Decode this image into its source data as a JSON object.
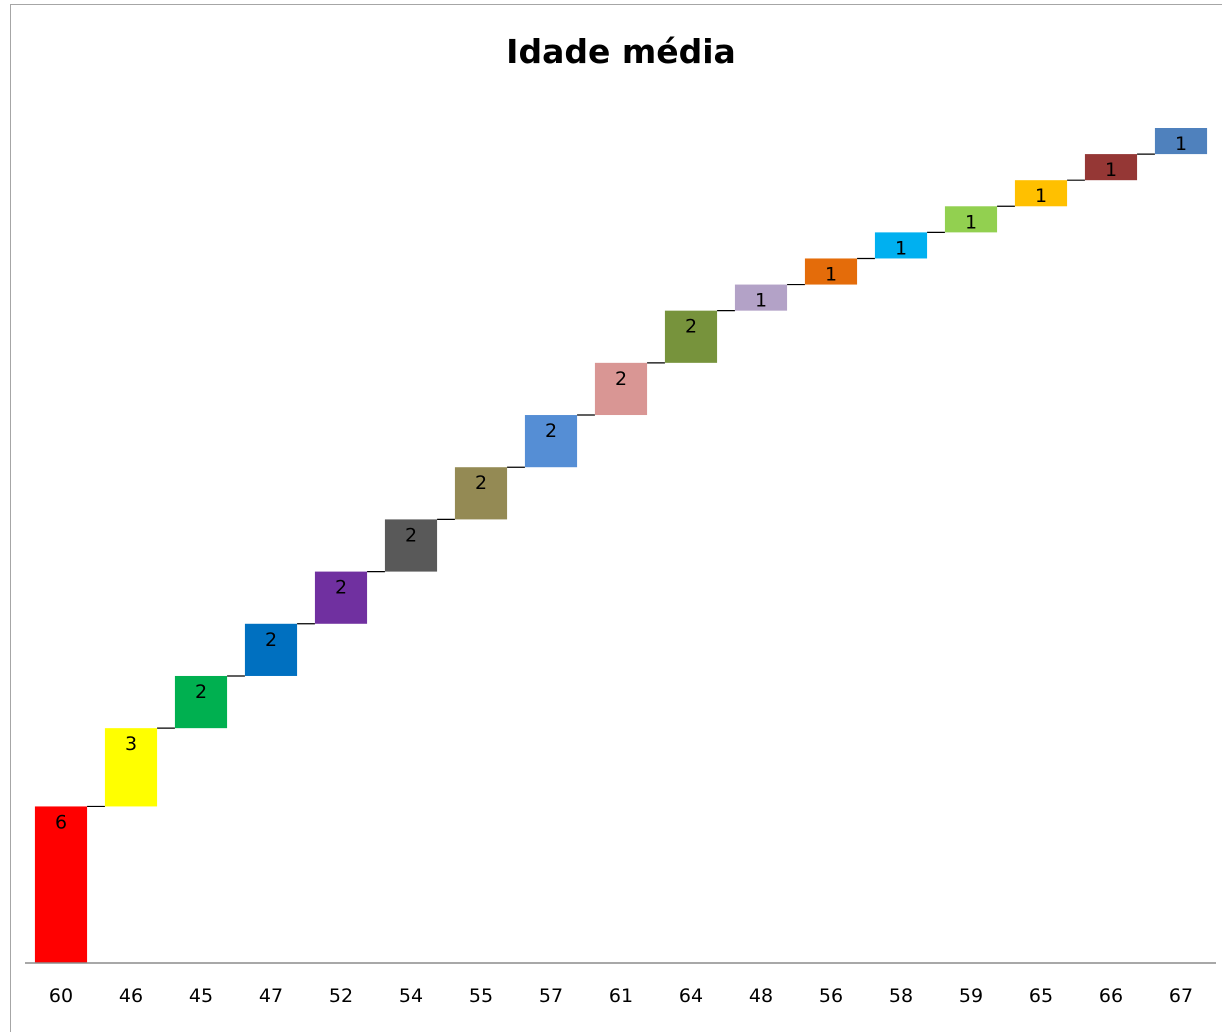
{
  "chart_data": {
    "type": "bar",
    "subtype": "waterfall",
    "title": "Idade média",
    "xlabel": "",
    "ylabel": "",
    "grid": false,
    "legend": "none",
    "ylim": [
      0,
      32
    ],
    "categories": [
      "60",
      "46",
      "45",
      "47",
      "52",
      "54",
      "55",
      "57",
      "61",
      "64",
      "48",
      "56",
      "58",
      "59",
      "65",
      "66",
      "67"
    ],
    "values": [
      6,
      3,
      2,
      2,
      2,
      2,
      2,
      2,
      2,
      2,
      1,
      1,
      1,
      1,
      1,
      1,
      1
    ],
    "data_labels": [
      "6",
      "3",
      "2",
      "2",
      "2",
      "2",
      "2",
      "2",
      "2",
      "2",
      "1",
      "1",
      "1",
      "1",
      "1",
      "1",
      "1"
    ],
    "colors": [
      "#ff0000",
      "#ffff00",
      "#00b050",
      "#0070c0",
      "#7030a0",
      "#595959",
      "#948a54",
      "#558ed5",
      "#d99694",
      "#77933c",
      "#b3a2c7",
      "#e46c0a",
      "#00b0f0",
      "#92d050",
      "#ffc000",
      "#953735",
      "#4f81bd"
    ]
  }
}
